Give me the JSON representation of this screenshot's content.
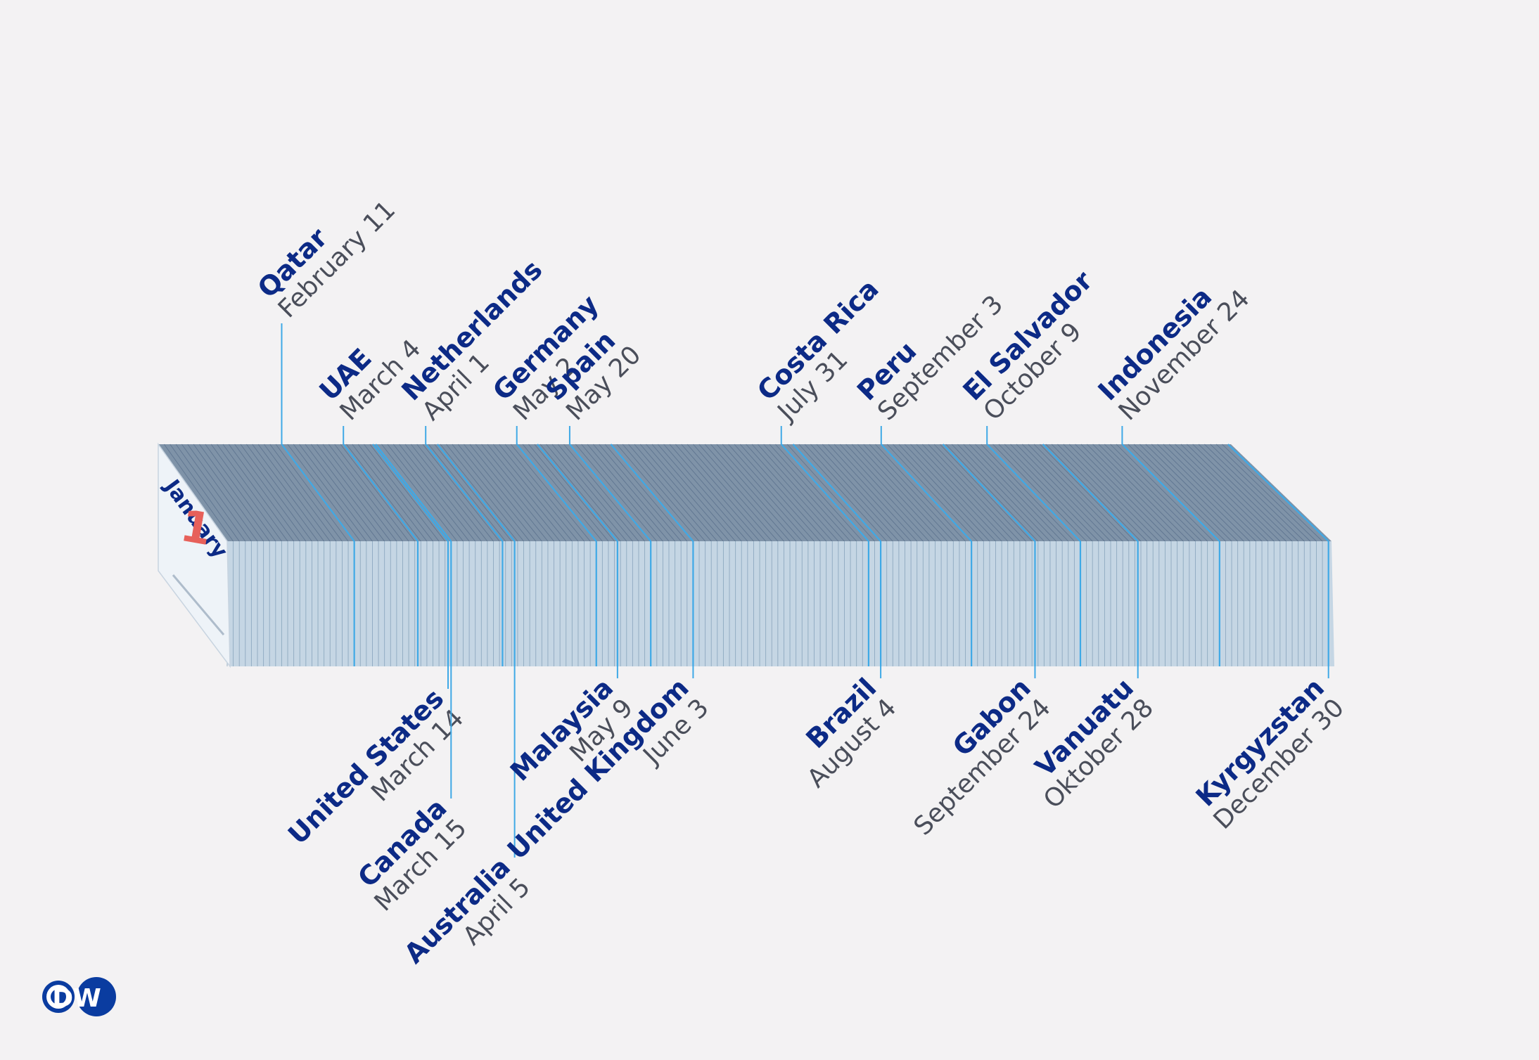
{
  "calendar": {
    "cover_month": "January",
    "cover_day": "1",
    "accent_color": "#3fa9e6",
    "country_color": "#0c2a86",
    "date_color": "#4a4e5a"
  },
  "markers_top": [
    {
      "country": "Qatar",
      "date": "February 11",
      "day": 42
    },
    {
      "country": "UAE",
      "date": "March 4",
      "day": 63
    },
    {
      "country": "Netherlands",
      "date": "April 1",
      "day": 91
    },
    {
      "country": "Germany",
      "date": "May 2",
      "day": 122
    },
    {
      "country": "Spain",
      "date": "May 20",
      "day": 140
    },
    {
      "country": "Costa Rica",
      "date": "July 31",
      "day": 212
    },
    {
      "country": "Peru",
      "date": "September 3",
      "day": 246
    },
    {
      "country": "El Salvador",
      "date": "October 9",
      "day": 282
    },
    {
      "country": "Indonesia",
      "date": "November 24",
      "day": 328
    }
  ],
  "markers_bottom": [
    {
      "country": "United States",
      "date": "March 14",
      "day": 73
    },
    {
      "country": "Canada",
      "date": "March 15",
      "day": 74
    },
    {
      "country": "Australia",
      "date": "April 5",
      "day": 95
    },
    {
      "country": "Malaysia",
      "date": "May 9",
      "day": 129
    },
    {
      "country": "United Kingdom",
      "date": "June 3",
      "day": 154
    },
    {
      "country": "Brazil",
      "date": "August 4",
      "day": 216
    },
    {
      "country": "Gabon",
      "date": "September 24",
      "day": 267
    },
    {
      "country": "Vanuatu",
      "date": "Oktober 28",
      "day": 301
    },
    {
      "country": "Kyrgyzstan",
      "date": "December 30",
      "day": 364
    }
  ],
  "logo": {
    "text": "DW",
    "icon": "dw-logo-icon"
  }
}
